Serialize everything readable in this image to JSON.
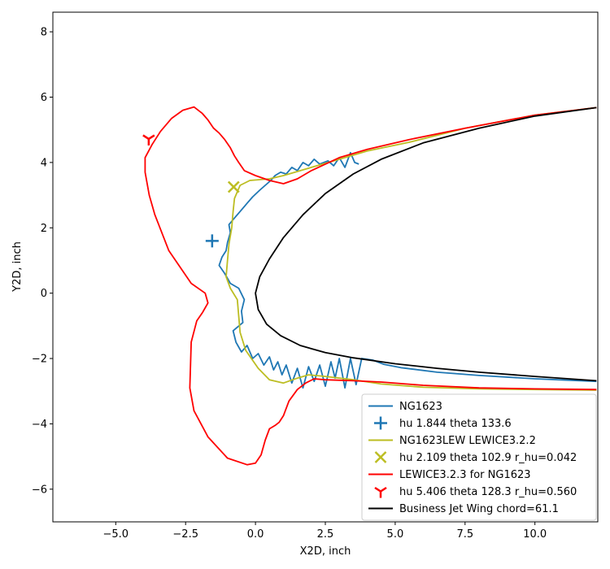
{
  "chart_data": {
    "type": "line",
    "xlabel": "X2D, inch",
    "ylabel": "Y2D, inch",
    "xlim": [
      -7.25,
      12.25
    ],
    "ylim": [
      -7.0,
      8.6
    ],
    "xticks": [
      -5.0,
      -2.5,
      0.0,
      2.5,
      5.0,
      7.5,
      10.0
    ],
    "xtick_labels": [
      "−5.0",
      "−2.5",
      "0.0",
      "2.5",
      "5.0",
      "7.5",
      "10.0"
    ],
    "yticks": [
      -6,
      -4,
      -2,
      0,
      2,
      4,
      6,
      8
    ],
    "ytick_labels": [
      "−6",
      "−4",
      "−2",
      "0",
      "2",
      "4",
      "6",
      "8"
    ],
    "grid": false,
    "legend_position": "lower-right",
    "series": [
      {
        "name": "NG1623",
        "kind": "line",
        "color": "#1f77b4",
        "points": [
          [
            12.2,
            -2.7
          ],
          [
            10.0,
            -2.62
          ],
          [
            8.0,
            -2.52
          ],
          [
            6.5,
            -2.42
          ],
          [
            5.2,
            -2.28
          ],
          [
            4.6,
            -2.18
          ],
          [
            4.2,
            -2.05
          ],
          [
            3.8,
            -2.0
          ],
          [
            3.6,
            -2.8
          ],
          [
            3.4,
            -2.0
          ],
          [
            3.2,
            -2.9
          ],
          [
            3.0,
            -2.0
          ],
          [
            2.85,
            -2.6
          ],
          [
            2.7,
            -2.1
          ],
          [
            2.5,
            -2.85
          ],
          [
            2.3,
            -2.2
          ],
          [
            2.1,
            -2.7
          ],
          [
            1.9,
            -2.25
          ],
          [
            1.7,
            -2.9
          ],
          [
            1.5,
            -2.3
          ],
          [
            1.3,
            -2.75
          ],
          [
            1.1,
            -2.2
          ],
          [
            0.95,
            -2.5
          ],
          [
            0.8,
            -2.1
          ],
          [
            0.65,
            -2.35
          ],
          [
            0.5,
            -1.95
          ],
          [
            0.3,
            -2.2
          ],
          [
            0.1,
            -1.85
          ],
          [
            -0.1,
            -2.0
          ],
          [
            -0.3,
            -1.6
          ],
          [
            -0.5,
            -1.8
          ],
          [
            -0.7,
            -1.5
          ],
          [
            -0.8,
            -1.15
          ],
          [
            -0.45,
            -0.9
          ],
          [
            -0.5,
            -0.55
          ],
          [
            -0.4,
            -0.2
          ],
          [
            -0.6,
            0.15
          ],
          [
            -0.9,
            0.3
          ],
          [
            -1.1,
            0.6
          ],
          [
            -1.3,
            0.85
          ],
          [
            -1.2,
            1.1
          ],
          [
            -1.05,
            1.3
          ],
          [
            -1.0,
            1.55
          ],
          [
            -0.9,
            1.85
          ],
          [
            -0.95,
            2.1
          ],
          [
            -0.75,
            2.3
          ],
          [
            -0.55,
            2.5
          ],
          [
            -0.3,
            2.75
          ],
          [
            -0.1,
            2.95
          ],
          [
            0.15,
            3.15
          ],
          [
            0.35,
            3.3
          ],
          [
            0.55,
            3.45
          ],
          [
            0.7,
            3.6
          ],
          [
            0.9,
            3.7
          ],
          [
            1.1,
            3.65
          ],
          [
            1.3,
            3.85
          ],
          [
            1.5,
            3.75
          ],
          [
            1.7,
            4.0
          ],
          [
            1.9,
            3.9
          ],
          [
            2.1,
            4.1
          ],
          [
            2.3,
            3.95
          ],
          [
            2.6,
            4.05
          ],
          [
            2.8,
            3.9
          ],
          [
            3.0,
            4.15
          ],
          [
            3.2,
            3.85
          ],
          [
            3.4,
            4.3
          ],
          [
            3.55,
            4.0
          ],
          [
            3.7,
            3.95
          ]
        ]
      },
      {
        "name": "hu 1.844 theta 133.6",
        "kind": "marker",
        "marker": "plus",
        "color": "#1f77b4",
        "points": [
          [
            -1.55,
            1.6
          ]
        ]
      },
      {
        "name": "NG1623LEW LEWICE3.2.2",
        "kind": "line",
        "color": "#bcbd22",
        "points": [
          [
            12.2,
            -2.97
          ],
          [
            10.0,
            -2.95
          ],
          [
            8.0,
            -2.93
          ],
          [
            6.0,
            -2.88
          ],
          [
            4.5,
            -2.78
          ],
          [
            3.5,
            -2.65
          ],
          [
            2.5,
            -2.55
          ],
          [
            1.9,
            -2.5
          ],
          [
            1.5,
            -2.6
          ],
          [
            1.0,
            -2.75
          ],
          [
            0.5,
            -2.65
          ],
          [
            0.1,
            -2.3
          ],
          [
            -0.35,
            -1.75
          ],
          [
            -0.55,
            -1.2
          ],
          [
            -0.6,
            -0.7
          ],
          [
            -0.65,
            -0.2
          ],
          [
            -0.9,
            0.15
          ],
          [
            -1.05,
            0.5
          ],
          [
            -1.0,
            1.0
          ],
          [
            -0.95,
            1.5
          ],
          [
            -0.85,
            2.0
          ],
          [
            -0.8,
            2.5
          ],
          [
            -0.75,
            2.9
          ],
          [
            -0.55,
            3.3
          ],
          [
            -0.2,
            3.45
          ],
          [
            0.5,
            3.5
          ],
          [
            1.0,
            3.6
          ],
          [
            2.0,
            3.85
          ],
          [
            3.0,
            4.1
          ],
          [
            4.0,
            4.35
          ],
          [
            5.5,
            4.62
          ],
          [
            7.5,
            5.05
          ],
          [
            10.0,
            5.45
          ],
          [
            12.2,
            5.68
          ]
        ]
      },
      {
        "name": "hu 2.109 theta 102.9 r_hu=0.042",
        "kind": "marker",
        "marker": "x",
        "color": "#bcbd22",
        "points": [
          [
            -0.78,
            3.25
          ]
        ]
      },
      {
        "name": "LEWICE3.2.3 for NG1623",
        "kind": "line",
        "color": "#ff0000",
        "points": [
          [
            12.2,
            -2.95
          ],
          [
            10.0,
            -2.93
          ],
          [
            8.0,
            -2.9
          ],
          [
            6.0,
            -2.82
          ],
          [
            4.5,
            -2.72
          ],
          [
            3.5,
            -2.68
          ],
          [
            2.5,
            -2.65
          ],
          [
            2.1,
            -2.62
          ],
          [
            1.8,
            -2.75
          ],
          [
            1.5,
            -2.95
          ],
          [
            1.2,
            -3.3
          ],
          [
            1.0,
            -3.75
          ],
          [
            0.85,
            -3.95
          ],
          [
            0.7,
            -4.05
          ],
          [
            0.5,
            -4.15
          ],
          [
            0.35,
            -4.5
          ],
          [
            0.2,
            -4.95
          ],
          [
            0.0,
            -5.2
          ],
          [
            -0.3,
            -5.25
          ],
          [
            -1.0,
            -5.05
          ],
          [
            -1.7,
            -4.4
          ],
          [
            -2.2,
            -3.6
          ],
          [
            -2.35,
            -2.9
          ],
          [
            -2.3,
            -1.5
          ],
          [
            -2.1,
            -0.85
          ],
          [
            -1.9,
            -0.6
          ],
          [
            -1.7,
            -0.3
          ],
          [
            -1.8,
            0.0
          ],
          [
            -2.3,
            0.3
          ],
          [
            -3.1,
            1.3
          ],
          [
            -3.6,
            2.4
          ],
          [
            -3.8,
            3.0
          ],
          [
            -3.95,
            3.7
          ],
          [
            -3.95,
            4.15
          ],
          [
            -3.7,
            4.55
          ],
          [
            -3.4,
            4.95
          ],
          [
            -3.0,
            5.35
          ],
          [
            -2.6,
            5.6
          ],
          [
            -2.2,
            5.7
          ],
          [
            -1.9,
            5.5
          ],
          [
            -1.7,
            5.3
          ],
          [
            -1.5,
            5.05
          ],
          [
            -1.3,
            4.9
          ],
          [
            -1.1,
            4.7
          ],
          [
            -0.9,
            4.45
          ],
          [
            -0.75,
            4.2
          ],
          [
            -0.6,
            4.0
          ],
          [
            -0.4,
            3.75
          ],
          [
            0.0,
            3.6
          ],
          [
            0.5,
            3.45
          ],
          [
            1.0,
            3.35
          ],
          [
            1.5,
            3.5
          ],
          [
            2.0,
            3.75
          ],
          [
            3.0,
            4.15
          ],
          [
            4.0,
            4.4
          ],
          [
            5.5,
            4.7
          ],
          [
            7.5,
            5.05
          ],
          [
            10.0,
            5.45
          ],
          [
            12.2,
            5.68
          ]
        ]
      },
      {
        "name": "hu 5.406 theta 128.3 r_hu=0.560",
        "kind": "marker",
        "marker": "tri_down",
        "color": "#ff0000",
        "points": [
          [
            -3.82,
            4.72
          ]
        ]
      },
      {
        "name": "Business Jet Wing chord=61.1",
        "kind": "line",
        "color": "#000000",
        "points": [
          [
            12.2,
            5.68
          ],
          [
            10.0,
            5.42
          ],
          [
            8.0,
            5.05
          ],
          [
            6.0,
            4.6
          ],
          [
            4.5,
            4.1
          ],
          [
            3.5,
            3.65
          ],
          [
            2.5,
            3.05
          ],
          [
            1.7,
            2.4
          ],
          [
            1.0,
            1.7
          ],
          [
            0.5,
            1.05
          ],
          [
            0.15,
            0.5
          ],
          [
            0.0,
            0.0
          ],
          [
            0.1,
            -0.5
          ],
          [
            0.4,
            -0.95
          ],
          [
            0.9,
            -1.3
          ],
          [
            1.6,
            -1.6
          ],
          [
            2.5,
            -1.82
          ],
          [
            3.5,
            -1.98
          ],
          [
            5.0,
            -2.16
          ],
          [
            6.5,
            -2.3
          ],
          [
            8.0,
            -2.42
          ],
          [
            10.0,
            -2.55
          ],
          [
            12.2,
            -2.68
          ]
        ]
      }
    ]
  }
}
